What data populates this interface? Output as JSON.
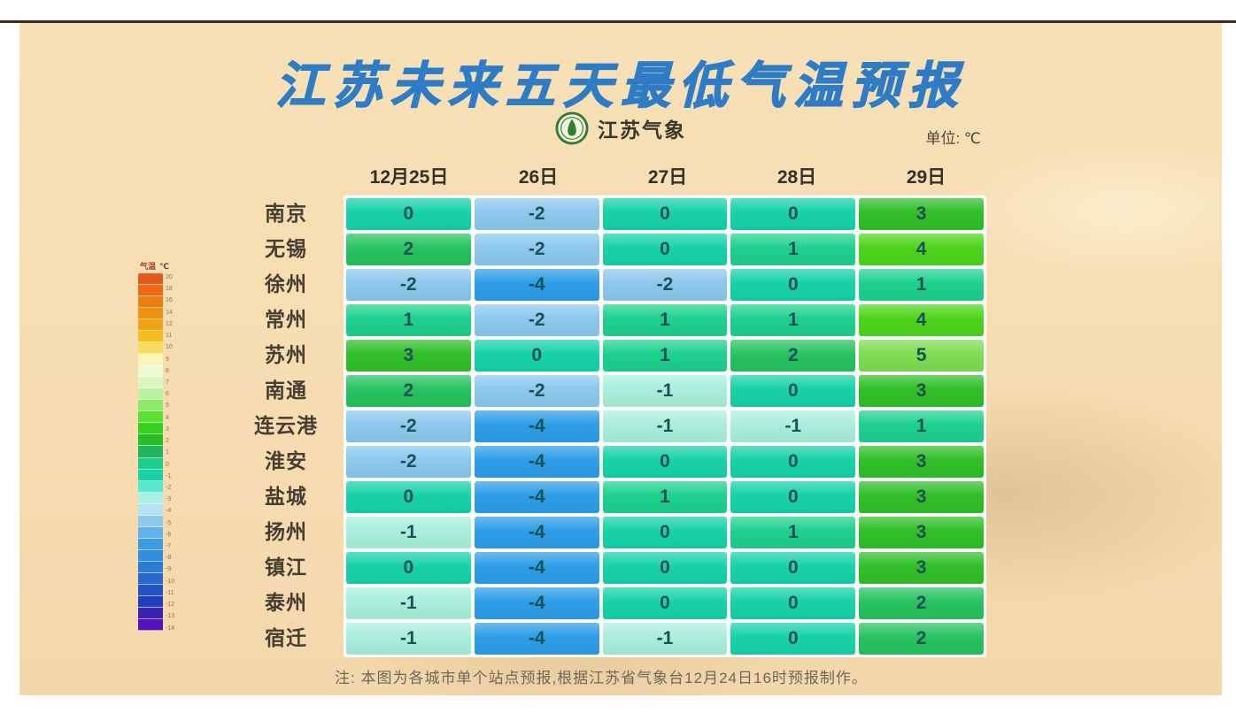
{
  "page": {
    "title": "江苏未来五天最低气温预报",
    "logo_text": "江苏气象",
    "unit_label": "单位: ℃",
    "note": "注: 本图为各城市单个站点预报,根据江苏省气象台12月24日16时预报制作。"
  },
  "colors": {
    "background": "#f6dcb0",
    "title_blue": "#2e7cc6",
    "cell_text": "#1d4f58",
    "value_colors": {
      "5": "#7edd50",
      "4": "#4cd51c",
      "3": "#30bf28",
      "2": "#27c261",
      "1": "#1ed18e",
      "0": "#17d2a8",
      "-1": "#a9efdb",
      "-2": "#8bc8ec",
      "-4": "#2d9de8"
    }
  },
  "chart_data": {
    "type": "heatmap",
    "title": "江苏未来五天最低气温预报",
    "unit": "℃",
    "columns": [
      "12月25日",
      "26日",
      "27日",
      "28日",
      "29日"
    ],
    "rows": [
      {
        "city": "南京",
        "values": [
          0,
          -2,
          0,
          0,
          3
        ]
      },
      {
        "city": "无锡",
        "values": [
          2,
          -2,
          0,
          1,
          4
        ]
      },
      {
        "city": "徐州",
        "values": [
          -2,
          -4,
          -2,
          0,
          1
        ]
      },
      {
        "city": "常州",
        "values": [
          1,
          -2,
          1,
          1,
          4
        ]
      },
      {
        "city": "苏州",
        "values": [
          3,
          0,
          1,
          2,
          5
        ]
      },
      {
        "city": "南通",
        "values": [
          2,
          -2,
          -1,
          0,
          3
        ]
      },
      {
        "city": "连云港",
        "values": [
          -2,
          -4,
          -1,
          -1,
          1
        ]
      },
      {
        "city": "淮安",
        "values": [
          -2,
          -4,
          0,
          0,
          3
        ]
      },
      {
        "city": "盐城",
        "values": [
          0,
          -4,
          1,
          0,
          3
        ]
      },
      {
        "city": "扬州",
        "values": [
          -1,
          -4,
          0,
          1,
          3
        ]
      },
      {
        "city": "镇江",
        "values": [
          0,
          -4,
          0,
          0,
          3
        ]
      },
      {
        "city": "泰州",
        "values": [
          -1,
          -4,
          0,
          0,
          2
        ]
      },
      {
        "city": "宿迁",
        "values": [
          -1,
          -4,
          -1,
          0,
          2
        ]
      }
    ]
  },
  "legend": {
    "title": "气温",
    "unit": "℃",
    "labels": [
      "20",
      "18",
      "16",
      "14",
      "12",
      "11",
      "10",
      "9",
      "8",
      "7",
      "6",
      "5",
      "4",
      "3",
      "2",
      "1",
      "0",
      "-1",
      "-2",
      "-3",
      "-4",
      "-5",
      "-6",
      "-7",
      "-8",
      "-9",
      "-10",
      "-11",
      "-12",
      "-13",
      "-14"
    ],
    "colors": [
      "#e25a1c",
      "#ec6b12",
      "#ee7d10",
      "#f09012",
      "#f2a414",
      "#f4be20",
      "#f8dc5a",
      "#fbf4b8",
      "#f0fad0",
      "#dcf6c0",
      "#bcf29c",
      "#90ea68",
      "#5ce034",
      "#34d21c",
      "#28bc26",
      "#20b45e",
      "#1ecd8a",
      "#17d2aa",
      "#58e8d2",
      "#aaf0e2",
      "#b4e2f4",
      "#8ecaee",
      "#62b2ea",
      "#3e9ce6",
      "#2f8ede",
      "#2b7cd6",
      "#2768ce",
      "#2352c4",
      "#2040ba",
      "#3a22b2",
      "#5512bc"
    ]
  }
}
